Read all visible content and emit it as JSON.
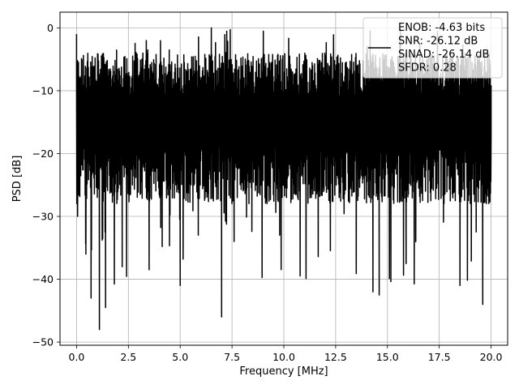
{
  "chart_data": {
    "type": "line",
    "xlabel": "Frequency [MHz]",
    "ylabel": "PSD [dB]",
    "xlim": [
      -0.8,
      20.8
    ],
    "ylim": [
      -50.5,
      2.5
    ],
    "xticks": [
      0.0,
      2.5,
      5.0,
      7.5,
      10.0,
      12.5,
      15.0,
      17.5,
      20.0
    ],
    "xtick_labels": [
      "0.0",
      "2.5",
      "5.0",
      "7.5",
      "10.0",
      "12.5",
      "15.0",
      "17.5",
      "20.0"
    ],
    "yticks": [
      0,
      -10,
      -20,
      -30,
      -40,
      -50
    ],
    "ytick_labels": [
      "0",
      "−10",
      "−20",
      "−30",
      "−40",
      "−50"
    ],
    "grid": true,
    "legend_position": "top-right",
    "legend": [
      "ENOB: -4.63 bits",
      "SNR: -26.12 dB",
      "SINAD: -26.14 dB",
      "SFDR: 0.28"
    ],
    "series": [
      {
        "color": "#000000",
        "x_range": [
          0,
          20
        ],
        "band": {
          "upper_typical": -7,
          "lower_typical": -23,
          "max_peak": 0,
          "min_dip": -48
        },
        "notable_points": [
          {
            "x": 0.0,
            "y": -1.0
          },
          {
            "x": 0.05,
            "y": -30.0
          },
          {
            "x": 0.45,
            "y": -36.0
          },
          {
            "x": 0.7,
            "y": -43.0
          },
          {
            "x": 1.1,
            "y": -48.0
          },
          {
            "x": 1.4,
            "y": -44.5
          },
          {
            "x": 2.2,
            "y": -38.0
          },
          {
            "x": 3.5,
            "y": -38.5
          },
          {
            "x": 5.0,
            "y": -41.0
          },
          {
            "x": 6.5,
            "y": 0.0
          },
          {
            "x": 7.0,
            "y": -46.0
          },
          {
            "x": 7.6,
            "y": -34.0
          },
          {
            "x": 9.8,
            "y": -33.0
          },
          {
            "x": 14.3,
            "y": -42.0
          },
          {
            "x": 14.6,
            "y": -42.5
          },
          {
            "x": 15.9,
            "y": -37.5
          },
          {
            "x": 18.5,
            "y": -41.0
          },
          {
            "x": 19.6,
            "y": -44.0
          },
          {
            "x": 20.0,
            "y": -17.0
          }
        ]
      }
    ]
  }
}
